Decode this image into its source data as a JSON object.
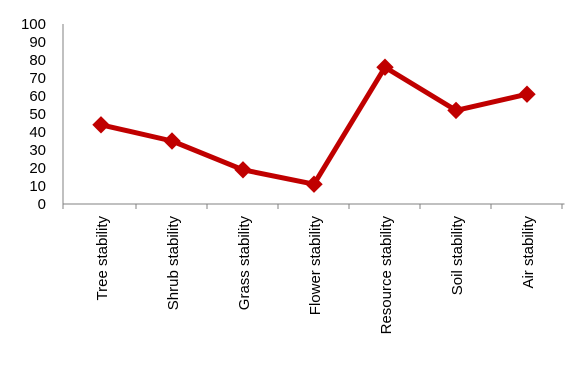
{
  "chart_data": {
    "type": "line",
    "title": "",
    "xlabel": "",
    "ylabel": "",
    "categories": [
      "Tree stability",
      "Shrub stability",
      "Grass stability",
      "Flower stability",
      "Resource stability",
      "Soil stability",
      "Air stability"
    ],
    "series": [
      {
        "values": [
          44,
          35,
          19,
          11,
          76,
          52,
          61
        ],
        "color": "#c00000",
        "marker": "diamond"
      }
    ],
    "ylim": [
      0,
      100
    ],
    "yticks": [
      "0",
      "10",
      "20",
      "30",
      "40",
      "50",
      "60",
      "70",
      "80",
      "90",
      "100"
    ],
    "grid": false,
    "legend": "none"
  }
}
